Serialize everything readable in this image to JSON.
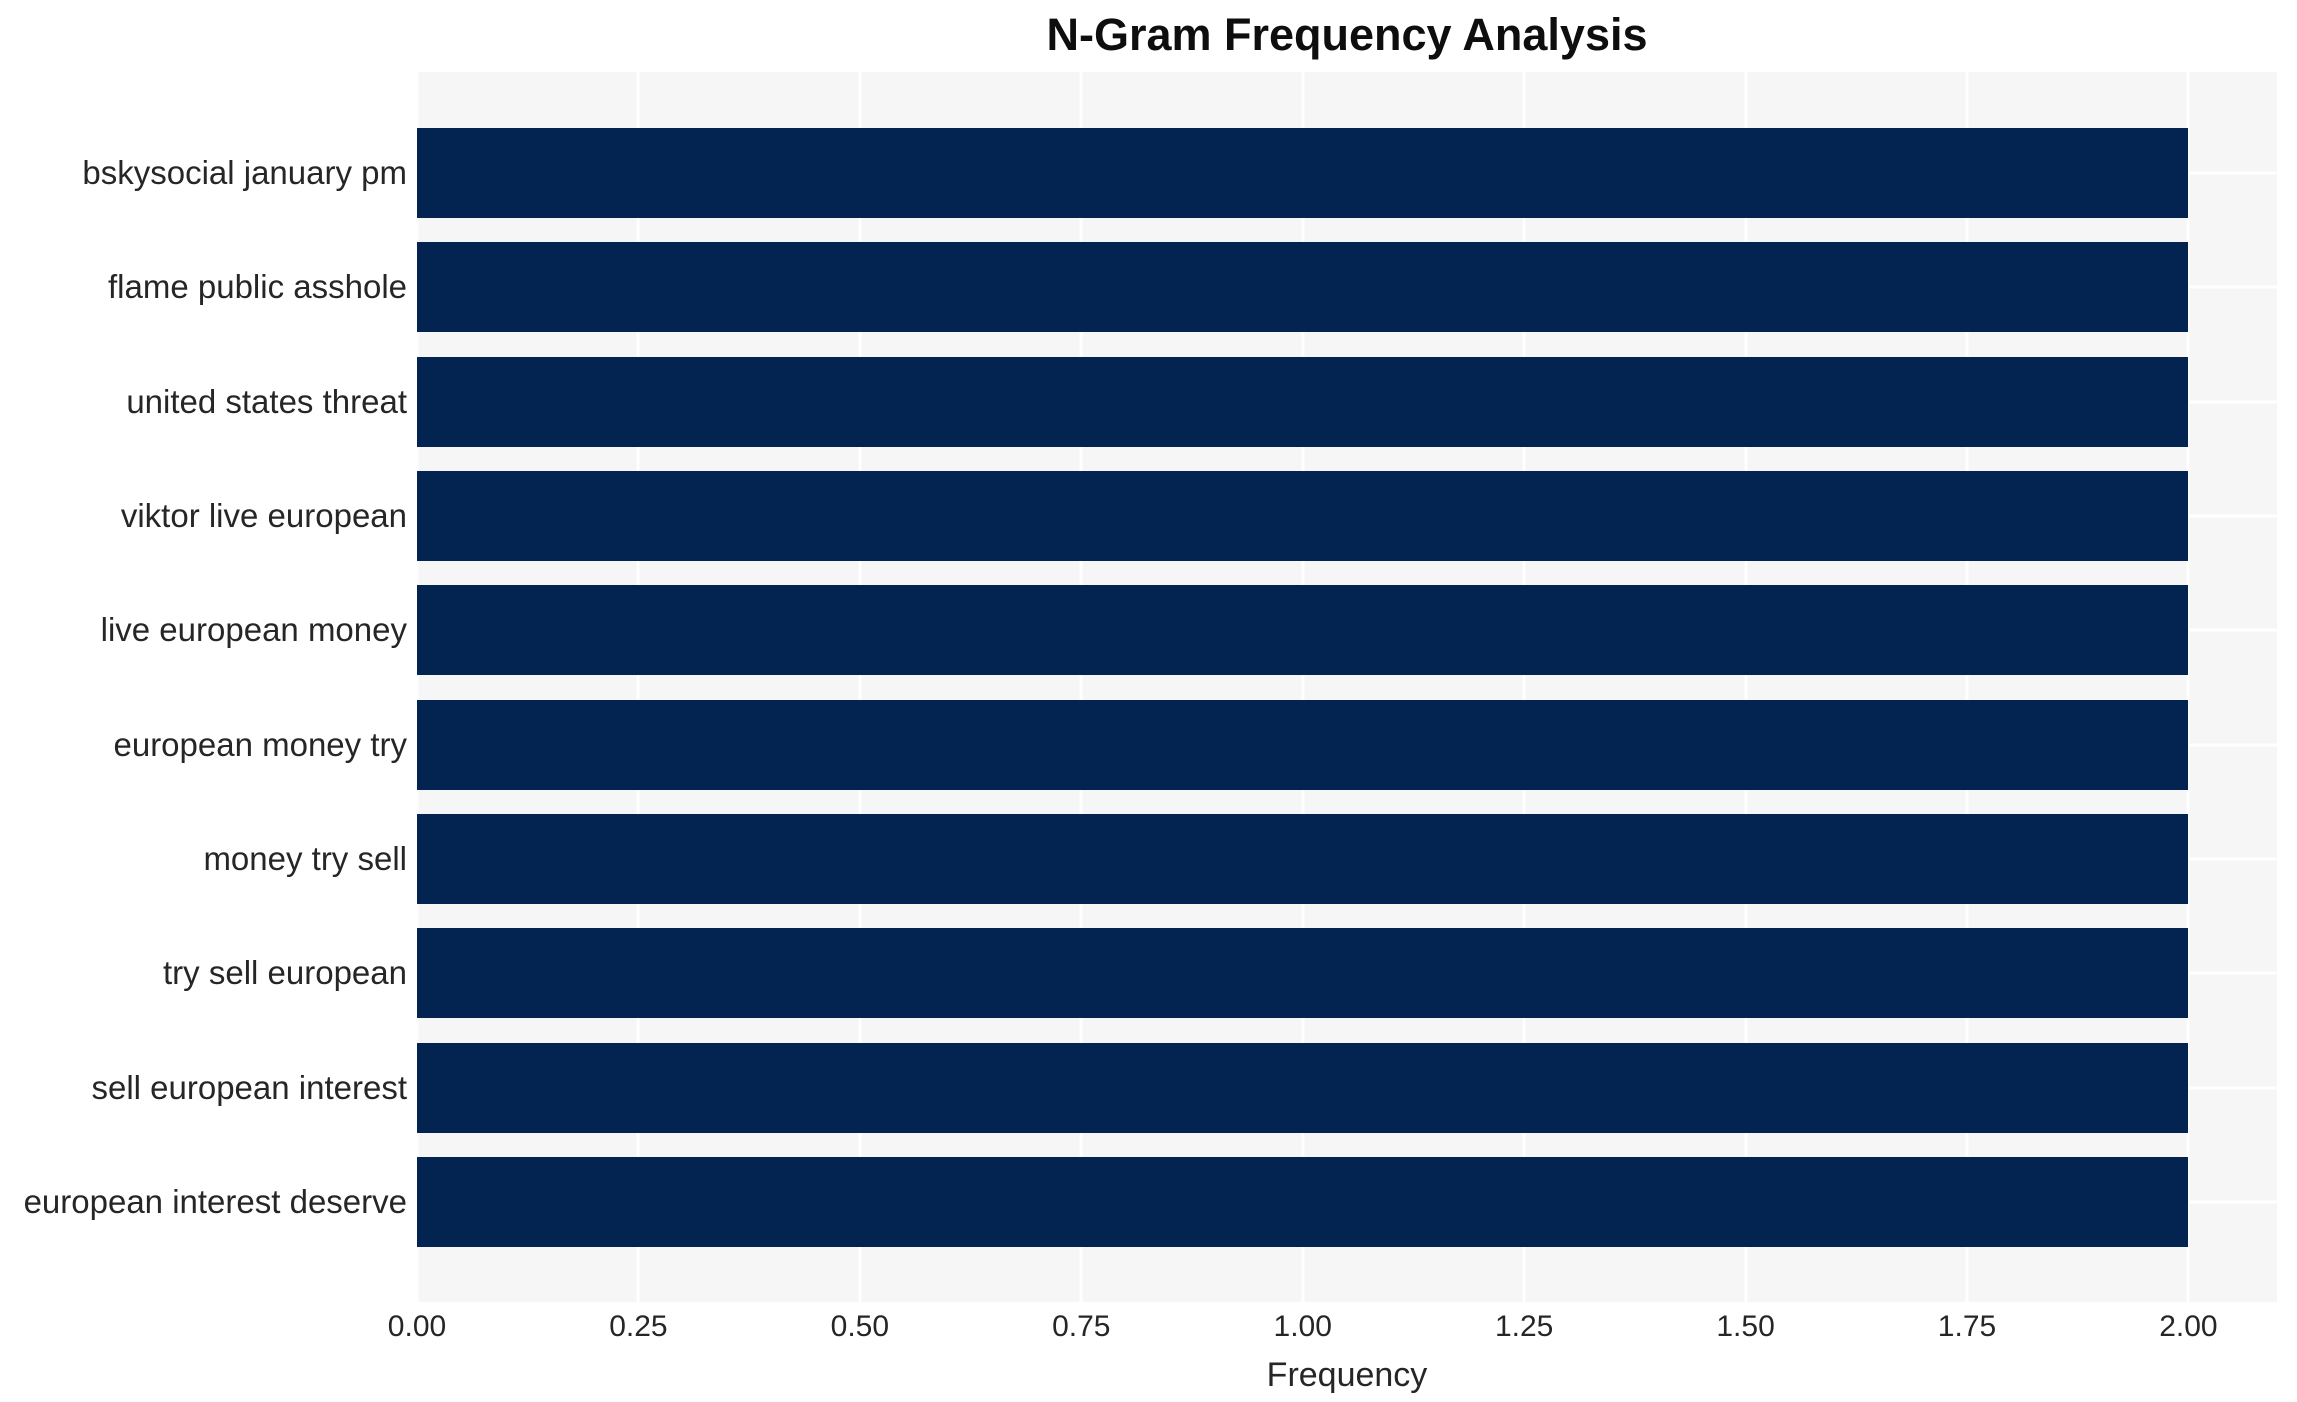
{
  "figure": {
    "title": "N-Gram Frequency Analysis",
    "xlabel": "Frequency"
  },
  "chart_data": {
    "type": "bar",
    "orientation": "horizontal",
    "title": "N-Gram Frequency Analysis",
    "xlabel": "Frequency",
    "ylabel": "",
    "categories": [
      "bskysocial january pm",
      "flame public asshole",
      "united states threat",
      "viktor live european",
      "live european money",
      "european money try",
      "money try sell",
      "try sell european",
      "sell european interest",
      "european interest deserve"
    ],
    "values": [
      2,
      2,
      2,
      2,
      2,
      2,
      2,
      2,
      2,
      2
    ],
    "xlim": [
      0,
      2.1
    ],
    "xticks": [
      0,
      0.25,
      0.5,
      0.75,
      1.0,
      1.25,
      1.5,
      1.75,
      2.0
    ],
    "xtick_labels": [
      "0.00",
      "0.25",
      "0.50",
      "0.75",
      "1.00",
      "1.25",
      "1.50",
      "1.75",
      "2.00"
    ],
    "grid": true,
    "grid_style": "white-on-lightgray",
    "legend": false,
    "colors": {
      "bar": "#032450",
      "plot_background": "#f6f6f7",
      "figure_background": "#ffffff",
      "gridline": "#ffffff",
      "tick_text": "#262626",
      "title_text": "#0e0e0e"
    }
  }
}
